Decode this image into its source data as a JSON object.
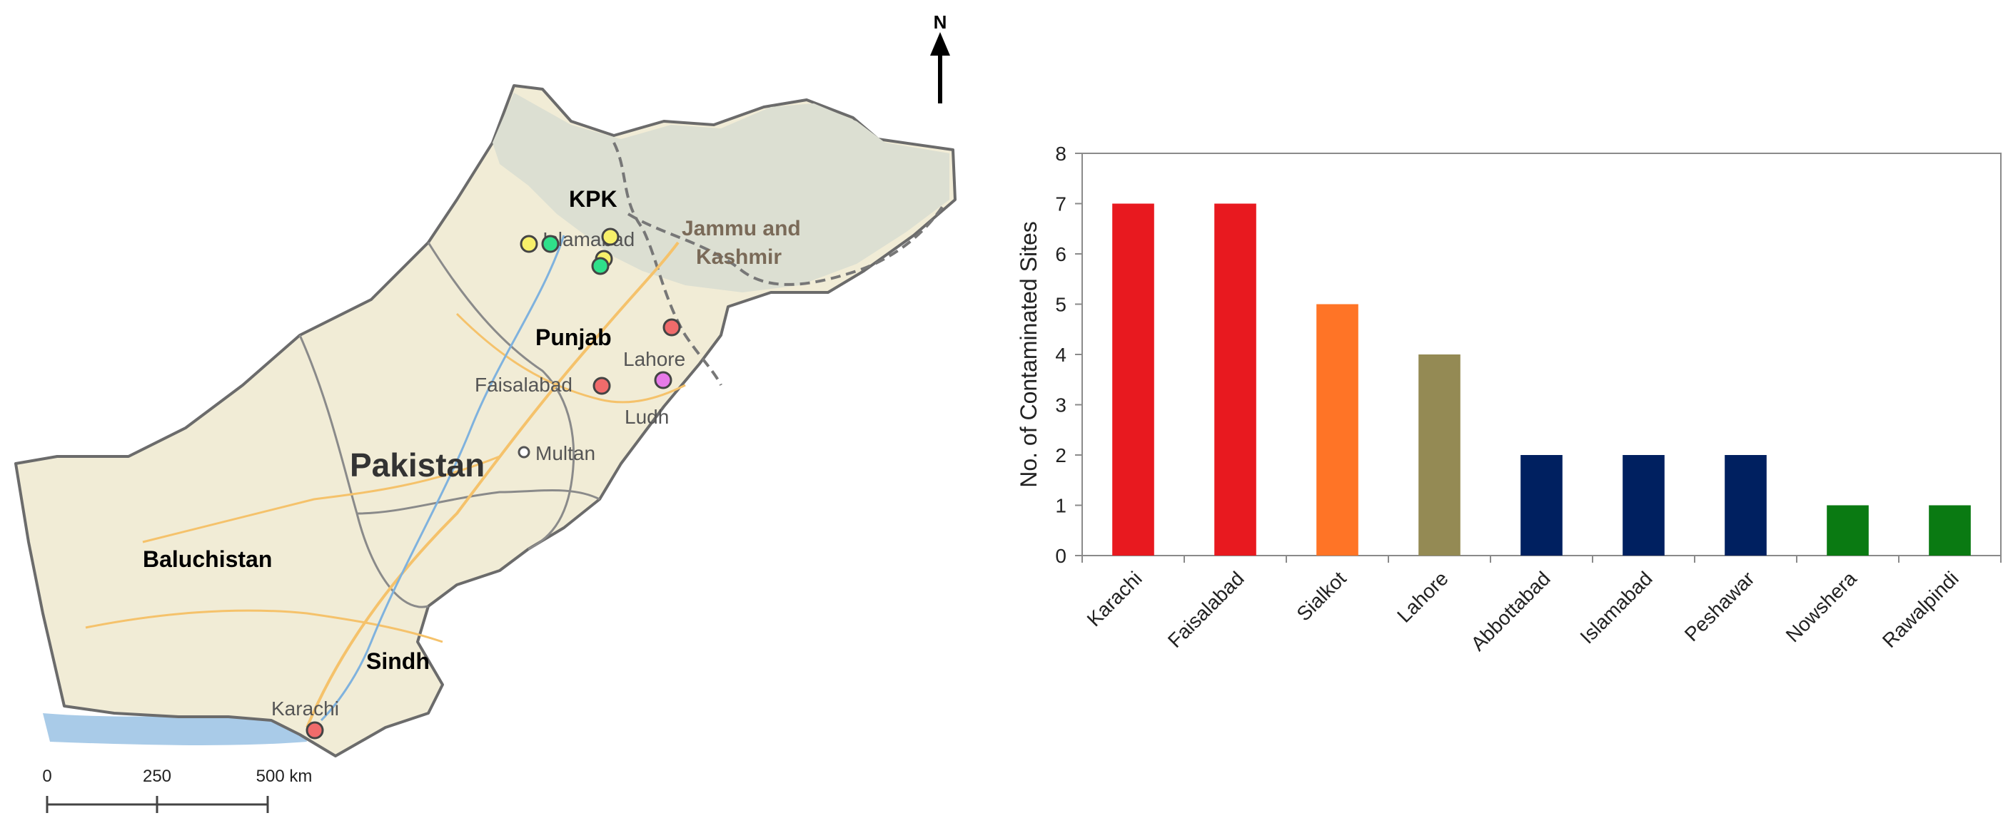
{
  "map": {
    "north_label": "N",
    "country_label": "Pakistan",
    "regions": [
      "KPK",
      "Punjab",
      "Baluchistan",
      "Sindh"
    ],
    "area_label_line1": "Jammu and",
    "area_label_line2": "Kashmir",
    "cities": [
      "Islamabad",
      "Lahore",
      "Faisalabad",
      "Multan",
      "Karachi",
      "Ludh"
    ],
    "scale_labels": [
      "0",
      "250",
      "500 km"
    ],
    "colors": {
      "land": "#f1ecd6",
      "mountain": "#dcdfd2",
      "water": "#a9cbe8",
      "border": "#6b6b6b",
      "road": "#f5c26b",
      "marker_red": "#f06b6b",
      "marker_yellow": "#f7f06a",
      "marker_green": "#2fe08a",
      "marker_pink": "#e77ae8"
    }
  },
  "chart_data": {
    "type": "bar",
    "categories": [
      "Karachi",
      "Faisalabad",
      "Sialkot",
      "Lahore",
      "Abbottabad",
      "Islamabad",
      "Peshawar",
      "Nowshera",
      "Rawalpindi"
    ],
    "values": [
      7,
      7,
      5,
      4,
      2,
      2,
      2,
      1,
      1
    ],
    "colors": [
      "#e8191f",
      "#e8191f",
      "#ff7426",
      "#948a54",
      "#002060",
      "#002060",
      "#002060",
      "#0a7a12",
      "#0a7a12"
    ],
    "title": "",
    "xlabel": "",
    "ylabel": "No. of Contaminated Sites",
    "ylim": [
      0,
      8
    ],
    "yticks": [
      0,
      1,
      2,
      3,
      4,
      5,
      6,
      7,
      8
    ],
    "grid": false
  }
}
